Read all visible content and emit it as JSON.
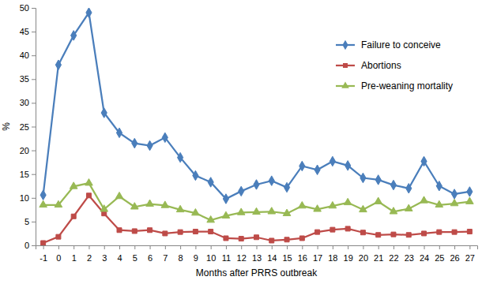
{
  "chart_data": {
    "type": "line",
    "x_label": "Months after PRRS outbreak",
    "y_label": "%",
    "x": [
      -1,
      0,
      1,
      2,
      3,
      4,
      5,
      6,
      7,
      8,
      9,
      10,
      11,
      12,
      13,
      14,
      15,
      16,
      17,
      18,
      19,
      20,
      21,
      22,
      23,
      24,
      25,
      26,
      27
    ],
    "xlim": [
      -1.5,
      27.5
    ],
    "xticks": [
      -1,
      0,
      1,
      2,
      3,
      4,
      5,
      6,
      7,
      8,
      9,
      10,
      11,
      12,
      13,
      14,
      15,
      16,
      17,
      18,
      19,
      20,
      21,
      22,
      23,
      24,
      25,
      26,
      27
    ],
    "ylim": [
      0,
      50
    ],
    "yticks": [
      0,
      5,
      10,
      15,
      20,
      25,
      30,
      35,
      40,
      45,
      50
    ],
    "grid": false,
    "legend": "top-right",
    "series": [
      {
        "name": "Failure to conceive",
        "color": "#4a7ebb",
        "marker": "diamond",
        "values": [
          10.6,
          38,
          44.2,
          49,
          27.9,
          23.7,
          21.5,
          21,
          22.7,
          18.5,
          14.7,
          13.3,
          9.8,
          11.4,
          12.8,
          13.6,
          12.2,
          16.7,
          15.9,
          17.7,
          16.8,
          14.2,
          13.8,
          12.7,
          12,
          17.7,
          12.5,
          10.8,
          11.3
        ]
      },
      {
        "name": "Abortions",
        "color": "#be4b48",
        "marker": "square",
        "values": [
          0.5,
          1.8,
          6.1,
          10.5,
          6.7,
          3.2,
          3.0,
          3.2,
          2.5,
          2.8,
          2.9,
          2.9,
          1.5,
          1.4,
          1.7,
          1.0,
          1.2,
          1.5,
          2.8,
          3.3,
          3.5,
          2.7,
          2.2,
          2.3,
          2.2,
          2.5,
          2.8,
          2.8,
          2.9
        ]
      },
      {
        "name": "Pre-weaning mortality",
        "color": "#98b954",
        "marker": "triangle",
        "values": [
          8.5,
          8.5,
          12.4,
          13.1,
          7.6,
          10.3,
          8.1,
          8.7,
          8.4,
          7.5,
          6.8,
          5.3,
          6.2,
          6.9,
          7.0,
          7.1,
          6.7,
          8.3,
          7.6,
          8.3,
          9.0,
          7.5,
          9.2,
          7.1,
          7.7,
          9.4,
          8.5,
          8.8,
          9.2
        ]
      }
    ]
  }
}
